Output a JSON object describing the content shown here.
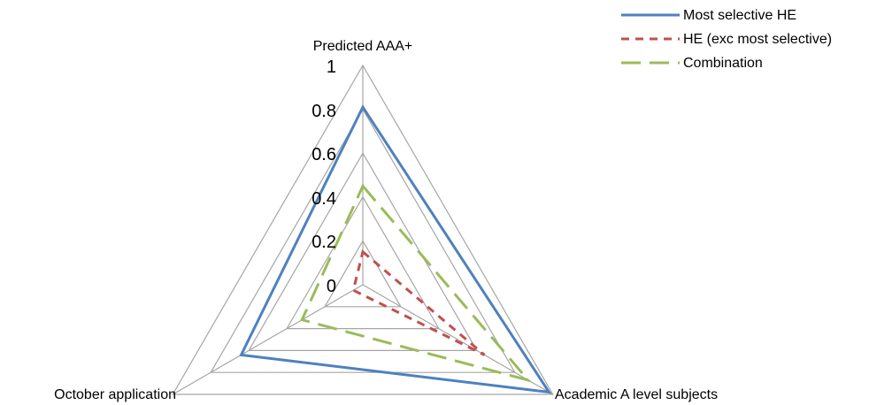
{
  "chart_data": {
    "type": "radar",
    "axes": [
      "Predicted AAA+",
      "Academic A level subjects",
      "October application"
    ],
    "rlim": [
      0,
      1
    ],
    "ticks": [
      "0",
      "0.2",
      "0.4",
      "0.6",
      "0.8",
      "1"
    ],
    "tick_values": [
      0,
      0.2,
      0.4,
      0.6,
      0.8,
      1
    ],
    "grid": true,
    "legend_position": "top-right",
    "series": [
      {
        "name": "Most selective HE",
        "values": [
          0.81,
          0.98,
          0.64
        ],
        "color": "#4F81BD",
        "dash": "solid"
      },
      {
        "name": "HE (exc most selective)",
        "values": [
          0.15,
          0.64,
          0.05
        ],
        "color": "#C0504D",
        "dash": "short-dash"
      },
      {
        "name": "Combination",
        "values": [
          0.45,
          0.87,
          0.32
        ],
        "color": "#9BBB59",
        "dash": "long-dash"
      }
    ]
  }
}
